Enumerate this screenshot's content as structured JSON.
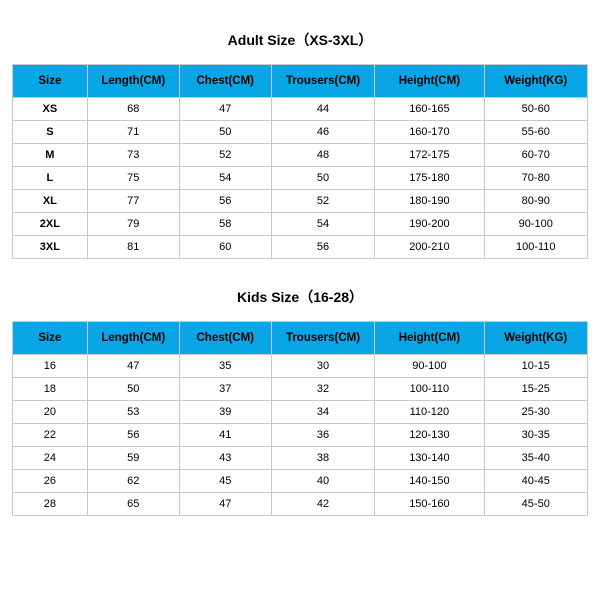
{
  "adult": {
    "title": "Adult Size（XS-3XL）",
    "columns": [
      "Size",
      "Length(CM)",
      "Chest(CM)",
      "Trousers(CM)",
      "Height(CM)",
      "Weight(KG)"
    ],
    "col_widths": [
      "13%",
      "16%",
      "16%",
      "18%",
      "19%",
      "18%"
    ],
    "header_bg": "#08a6e4",
    "header_color": "#000000",
    "border_color": "#c9c9c9",
    "row_bg": "#ffffff",
    "font_size_header": 11.5,
    "font_size_cell": 11,
    "rows": [
      [
        "XS",
        "68",
        "47",
        "44",
        "160-165",
        "50-60"
      ],
      [
        "S",
        "71",
        "50",
        "46",
        "160-170",
        "55-60"
      ],
      [
        "M",
        "73",
        "52",
        "48",
        "172-175",
        "60-70"
      ],
      [
        "L",
        "75",
        "54",
        "50",
        "175-180",
        "70-80"
      ],
      [
        "XL",
        "77",
        "56",
        "52",
        "180-190",
        "80-90"
      ],
      [
        "2XL",
        "79",
        "58",
        "54",
        "190-200",
        "90-100"
      ],
      [
        "3XL",
        "81",
        "60",
        "56",
        "200-210",
        "100-110"
      ]
    ]
  },
  "kids": {
    "title": "Kids Size（16-28）",
    "columns": [
      "Size",
      "Length(CM)",
      "Chest(CM)",
      "Trousers(CM)",
      "Height(CM)",
      "Weight(KG)"
    ],
    "col_widths": [
      "13%",
      "16%",
      "16%",
      "18%",
      "19%",
      "18%"
    ],
    "header_bg": "#08a6e4",
    "header_color": "#000000",
    "border_color": "#c9c9c9",
    "row_bg": "#ffffff",
    "font_size_header": 11.5,
    "font_size_cell": 11,
    "rows": [
      [
        "16",
        "47",
        "35",
        "30",
        "90-100",
        "10-15"
      ],
      [
        "18",
        "50",
        "37",
        "32",
        "100-110",
        "15-25"
      ],
      [
        "20",
        "53",
        "39",
        "34",
        "110-120",
        "25-30"
      ],
      [
        "22",
        "56",
        "41",
        "36",
        "120-130",
        "30-35"
      ],
      [
        "24",
        "59",
        "43",
        "38",
        "130-140",
        "35-40"
      ],
      [
        "26",
        "62",
        "45",
        "40",
        "140-150",
        "40-45"
      ],
      [
        "28",
        "65",
        "47",
        "42",
        "150-160",
        "45-50"
      ]
    ]
  }
}
